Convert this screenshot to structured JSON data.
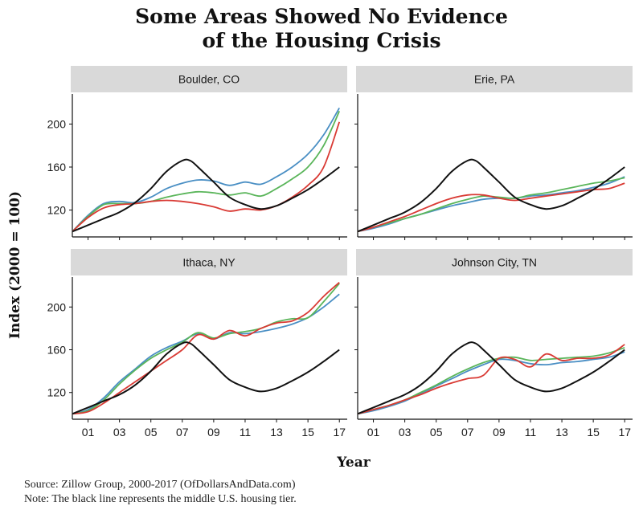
{
  "title_lines": [
    "Some Areas Showed No Evidence",
    "of the Housing Crisis"
  ],
  "source_note": "Source:  Zillow Group, 2000-2017 (OfDollarsAndData.com)",
  "footnote": "Note:  The black line represents the middle U.S. housing tier.",
  "chart_data": {
    "type": "line",
    "layout": "facet-grid-2x2",
    "xlabel": "Year",
    "ylabel": "Index (2000 = 100)",
    "xlim": [
      2000,
      2017.5
    ],
    "ylim": [
      95,
      228
    ],
    "x_ticks": [
      2001,
      2003,
      2005,
      2007,
      2009,
      2011,
      2013,
      2015,
      2017
    ],
    "x_tick_labels": [
      "01",
      "03",
      "05",
      "07",
      "09",
      "11",
      "13",
      "15",
      "17"
    ],
    "y_ticks": [
      120,
      160,
      200
    ],
    "grid": false,
    "legend": "none",
    "colors": {
      "black": "#111111",
      "blue": "#4a8fc4",
      "green": "#5ab55a",
      "red": "#d93a34"
    },
    "panels": [
      {
        "name": "Boulder, CO",
        "series": [
          {
            "color": "black",
            "x": [
              2000,
              2001,
              2002,
              2003,
              2004,
              2005,
              2006,
              2007,
              2007.5,
              2008,
              2009,
              2010,
              2011,
              2012,
              2013,
              2014,
              2015,
              2016,
              2017
            ],
            "y": [
              100,
              106,
              112,
              118,
              127,
              140,
              156,
              166,
              166,
              160,
              146,
              132,
              125,
              121,
              124,
              131,
              139,
              149,
              160
            ]
          },
          {
            "color": "blue",
            "x": [
              2000,
              2001,
              2002,
              2003,
              2004,
              2005,
              2006,
              2007,
              2008,
              2009,
              2010,
              2011,
              2012,
              2013,
              2014,
              2015,
              2016,
              2017
            ],
            "y": [
              100,
              115,
              126,
              128,
              127,
              132,
              140,
              145,
              148,
              147,
              143,
              146,
              144,
              151,
              160,
              172,
              190,
              215
            ]
          },
          {
            "color": "green",
            "x": [
              2000,
              2001,
              2002,
              2003,
              2004,
              2005,
              2006,
              2007,
              2008,
              2009,
              2010,
              2011,
              2012,
              2013,
              2014,
              2015,
              2016,
              2017
            ],
            "y": [
              100,
              114,
              125,
              126,
              126,
              128,
              132,
              135,
              137,
              136,
              134,
              136,
              133,
              140,
              149,
              160,
              180,
              212
            ]
          },
          {
            "color": "red",
            "x": [
              2000,
              2001,
              2002,
              2003,
              2004,
              2005,
              2006,
              2007,
              2008,
              2009,
              2010,
              2011,
              2012,
              2013,
              2014,
              2015,
              2016,
              2017
            ],
            "y": [
              100,
              113,
              122,
              125,
              126,
              128,
              129,
              128,
              126,
              123,
              119,
              121,
              120,
              124,
              132,
              143,
              160,
              202
            ]
          }
        ]
      },
      {
        "name": "Erie, PA",
        "series": [
          {
            "color": "black",
            "x": [
              2000,
              2001,
              2002,
              2003,
              2004,
              2005,
              2006,
              2007,
              2007.5,
              2008,
              2009,
              2010,
              2011,
              2012,
              2013,
              2014,
              2015,
              2016,
              2017
            ],
            "y": [
              100,
              106,
              112,
              118,
              127,
              140,
              156,
              166,
              166,
              160,
              146,
              132,
              125,
              121,
              124,
              131,
              139,
              149,
              160
            ]
          },
          {
            "color": "blue",
            "x": [
              2000,
              2001,
              2002,
              2003,
              2004,
              2005,
              2006,
              2007,
              2008,
              2009,
              2010,
              2011,
              2012,
              2013,
              2014,
              2015,
              2016,
              2017
            ],
            "y": [
              100,
              103,
              107,
              112,
              116,
              120,
              124,
              127,
              130,
              131,
              131,
              133,
              134,
              136,
              138,
              141,
              145,
              151
            ]
          },
          {
            "color": "green",
            "x": [
              2000,
              2001,
              2002,
              2003,
              2004,
              2005,
              2006,
              2007,
              2008,
              2009,
              2010,
              2011,
              2012,
              2013,
              2014,
              2015,
              2016,
              2017
            ],
            "y": [
              100,
              104,
              108,
              112,
              116,
              121,
              126,
              130,
              133,
              132,
              131,
              134,
              136,
              139,
              142,
              145,
              147,
              150
            ]
          },
          {
            "color": "red",
            "x": [
              2000,
              2001,
              2002,
              2003,
              2004,
              2005,
              2006,
              2007,
              2008,
              2009,
              2010,
              2011,
              2012,
              2013,
              2014,
              2015,
              2016,
              2017
            ],
            "y": [
              100,
              104,
              109,
              114,
              120,
              126,
              131,
              134,
              134,
              131,
              129,
              131,
              133,
              135,
              137,
              139,
              140,
              145
            ]
          }
        ]
      },
      {
        "name": "Ithaca, NY",
        "series": [
          {
            "color": "black",
            "x": [
              2000,
              2001,
              2002,
              2003,
              2004,
              2005,
              2006,
              2007,
              2007.5,
              2008,
              2009,
              2010,
              2011,
              2012,
              2013,
              2014,
              2015,
              2016,
              2017
            ],
            "y": [
              100,
              106,
              112,
              118,
              127,
              140,
              156,
              166,
              166,
              160,
              146,
              132,
              125,
              121,
              124,
              131,
              139,
              149,
              160
            ]
          },
          {
            "color": "blue",
            "x": [
              2000,
              2001,
              2002,
              2003,
              2004,
              2005,
              2006,
              2007,
              2008,
              2009,
              2010,
              2011,
              2012,
              2013,
              2014,
              2015,
              2016,
              2017
            ],
            "y": [
              100,
              104,
              115,
              130,
              142,
              154,
              162,
              168,
              175,
              170,
              176,
              175,
              177,
              180,
              184,
              190,
              200,
              212
            ]
          },
          {
            "color": "green",
            "x": [
              2000,
              2001,
              2002,
              2003,
              2004,
              2005,
              2006,
              2007,
              2008,
              2009,
              2010,
              2011,
              2012,
              2013,
              2014,
              2015,
              2016,
              2017
            ],
            "y": [
              100,
              103,
              113,
              128,
              141,
              152,
              160,
              167,
              176,
              171,
              175,
              177,
              180,
              186,
              189,
              190,
              205,
              222
            ]
          },
          {
            "color": "red",
            "x": [
              2000,
              2001,
              2002,
              2003,
              2004,
              2005,
              2006,
              2007,
              2008,
              2009,
              2010,
              2011,
              2012,
              2013,
              2014,
              2015,
              2016,
              2017
            ],
            "y": [
              100,
              102,
              110,
              120,
              130,
              140,
              150,
              160,
              174,
              170,
              178,
              173,
              180,
              185,
              187,
              195,
              210,
              223
            ]
          }
        ]
      },
      {
        "name": "Johnson City, TN",
        "series": [
          {
            "color": "black",
            "x": [
              2000,
              2001,
              2002,
              2003,
              2004,
              2005,
              2006,
              2007,
              2007.5,
              2008,
              2009,
              2010,
              2011,
              2012,
              2013,
              2014,
              2015,
              2016,
              2017
            ],
            "y": [
              100,
              106,
              112,
              118,
              127,
              140,
              156,
              166,
              166,
              160,
              146,
              132,
              125,
              121,
              124,
              131,
              139,
              149,
              160
            ]
          },
          {
            "color": "blue",
            "x": [
              2000,
              2001,
              2002,
              2003,
              2004,
              2005,
              2006,
              2007,
              2008,
              2009,
              2010,
              2011,
              2012,
              2013,
              2014,
              2015,
              2016,
              2017
            ],
            "y": [
              100,
              103,
              107,
              112,
              119,
              126,
              133,
              140,
              146,
              151,
              150,
              147,
              146,
              148,
              149,
              151,
              153,
              158
            ]
          },
          {
            "color": "green",
            "x": [
              2000,
              2001,
              2002,
              2003,
              2004,
              2005,
              2006,
              2007,
              2008,
              2009,
              2010,
              2011,
              2012,
              2013,
              2014,
              2015,
              2016,
              2017
            ],
            "y": [
              100,
              104,
              108,
              113,
              120,
              127,
              135,
              142,
              148,
              152,
              153,
              150,
              151,
              152,
              153,
              154,
              157,
              162
            ]
          },
          {
            "color": "red",
            "x": [
              2000,
              2001,
              2002,
              2003,
              2004,
              2005,
              2006,
              2007,
              2008,
              2009,
              2010,
              2011,
              2012,
              2013,
              2014,
              2015,
              2016,
              2017
            ],
            "y": [
              100,
              104,
              108,
              113,
              118,
              124,
              129,
              133,
              136,
              152,
              151,
              144,
              156,
              150,
              152,
              152,
              155,
              165
            ]
          }
        ]
      }
    ]
  }
}
